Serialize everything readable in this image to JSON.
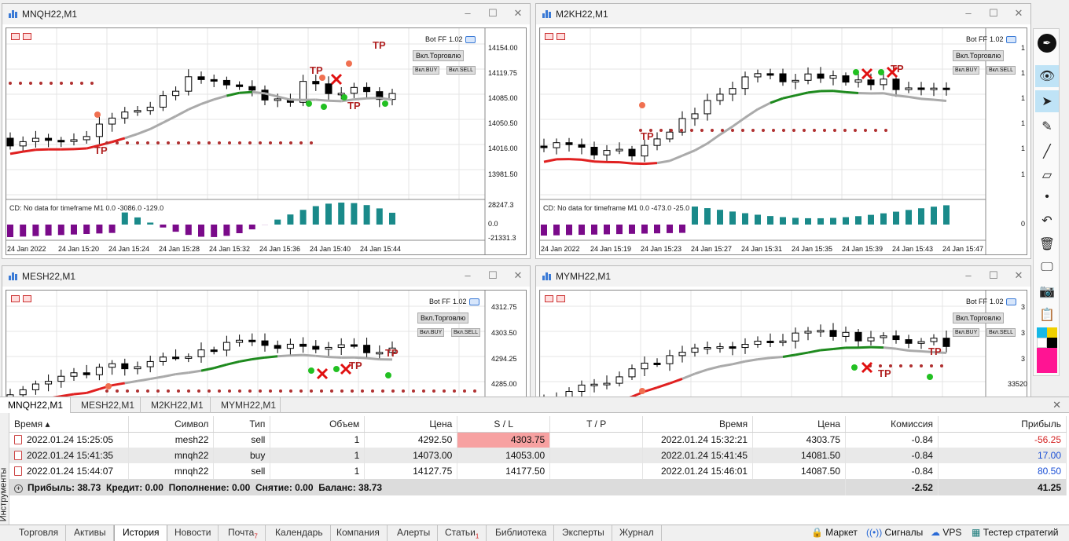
{
  "charts": [
    {
      "id": "mnq",
      "title": "MNQH22,M1",
      "bot_label": "Bot FF",
      "bot_version": "1.02",
      "trade_btn": "Вкл.Торговлю",
      "buy_btn": "Вкл.BUY",
      "sell_btn": "Вкл.SELL",
      "indicator_text": "CD: No data for timeframe M1 0.0 -3086.0 -129.0",
      "prices": [
        "14154.00",
        "14119.75",
        "14085.00",
        "14050.50",
        "14016.00",
        "13981.50"
      ],
      "ind_levels": [
        "28247.3",
        "0.0",
        "-21331.3"
      ],
      "times": [
        "24 Jan 2022",
        "24 Jan 15:20",
        "24 Jan 15:24",
        "24 Jan 15:28",
        "24 Jan 15:32",
        "24 Jan 15:36",
        "24 Jan 15:40",
        "24 Jan 15:44"
      ],
      "tp_labels": [
        "TP",
        "TP",
        "TP",
        "TP"
      ]
    },
    {
      "id": "m2k",
      "title": "M2KH22,M1",
      "bot_label": "Bot FF",
      "bot_version": "1.02",
      "trade_btn": "Вкл.Торговлю",
      "buy_btn": "Вкл.BUY",
      "sell_btn": "Вкл.SELL",
      "indicator_text": "CD: No data for timeframe M1 0.0 -473.0 -25.0",
      "prices": [
        "1",
        "1",
        "1",
        "1",
        "1",
        "1"
      ],
      "ind_levels": [
        "",
        "0",
        ""
      ],
      "times": [
        "24 Jan 2022",
        "24 Jan 15:19",
        "24 Jan 15:23",
        "24 Jan 15:27",
        "24 Jan 15:31",
        "24 Jan 15:35",
        "24 Jan 15:39",
        "24 Jan 15:43",
        "24 Jan 15:47"
      ],
      "tp_labels": [
        "TP",
        "TP"
      ]
    },
    {
      "id": "mes",
      "title": "MESH22,M1",
      "bot_label": "Bot FF",
      "bot_version": "1.02",
      "trade_btn": "Вкл.Торговлю",
      "buy_btn": "Вкл.BUY",
      "sell_btn": "Вкл.SELL",
      "prices": [
        "4312.75",
        "4303.50",
        "4294.25",
        "4285.00"
      ],
      "tp_labels": [
        "TP",
        "TP"
      ]
    },
    {
      "id": "mym",
      "title": "MYMH22,M1",
      "bot_label": "Bot FF",
      "bot_version": "1.02",
      "trade_btn": "Вкл.Торговлю",
      "buy_btn": "Вкл.BUY",
      "sell_btn": "Вкл.SELL",
      "prices": [
        "3",
        "3",
        "3",
        "33520"
      ],
      "tp_labels": [
        "TP",
        "TP"
      ]
    }
  ],
  "chart_tabs": [
    "MNQH22,M1",
    "MESH22,M1",
    "M2KH22,M1",
    "MYMH22,M1"
  ],
  "toolbox_label": "Инструменты",
  "table": {
    "headers": [
      "Время",
      "Символ",
      "Тип",
      "Объем",
      "Цена",
      "S / L",
      "T / P",
      "Время",
      "Цена",
      "Комиссия",
      "Прибыль"
    ],
    "rows": [
      [
        "2022.01.24 15:25:05",
        "mesh22",
        "sell",
        "1",
        "4292.50",
        "4303.75",
        "",
        "2022.01.24 15:32:21",
        "4303.75",
        "-0.84",
        "-56.25"
      ],
      [
        "2022.01.24 15:41:35",
        "mnqh22",
        "buy",
        "1",
        "14073.00",
        "14053.00",
        "",
        "2022.01.24 15:41:45",
        "14081.50",
        "-0.84",
        "17.00"
      ],
      [
        "2022.01.24 15:44:07",
        "mnqh22",
        "sell",
        "1",
        "14127.75",
        "14177.50",
        "",
        "2022.01.24 15:46:01",
        "14087.50",
        "-0.84",
        "80.50"
      ]
    ],
    "summary": "Прибыль: 38.73  Кредит: 0.00  Пополнение: 0.00  Снятие: 0.00  Баланс: 38.73",
    "total_commission": "-2.52",
    "total_profit": "41.25"
  },
  "bottom_tabs": [
    {
      "label": "Торговля"
    },
    {
      "label": "Активы"
    },
    {
      "label": "История"
    },
    {
      "label": "Новости"
    },
    {
      "label": "Почта",
      "badge": "7"
    },
    {
      "label": "Календарь"
    },
    {
      "label": "Компания"
    },
    {
      "label": "Алерты"
    },
    {
      "label": "Статьи",
      "badge": "1"
    },
    {
      "label": "Библиотека"
    },
    {
      "label": "Эксперты"
    },
    {
      "label": "Журнал"
    }
  ],
  "bottom_right": [
    "Маркет",
    "Сигналы",
    "VPS",
    "Тестер стратегий"
  ],
  "colors": {
    "bull": "#ffffff",
    "bear": "#000000",
    "ind_pos": "#1a8a8a",
    "ind_neg": "#7a0a8a",
    "ma_red": "#e02020",
    "ma_green": "#1e8a1e",
    "ma_gray": "#aaaaaa",
    "dots": "#b03030"
  }
}
